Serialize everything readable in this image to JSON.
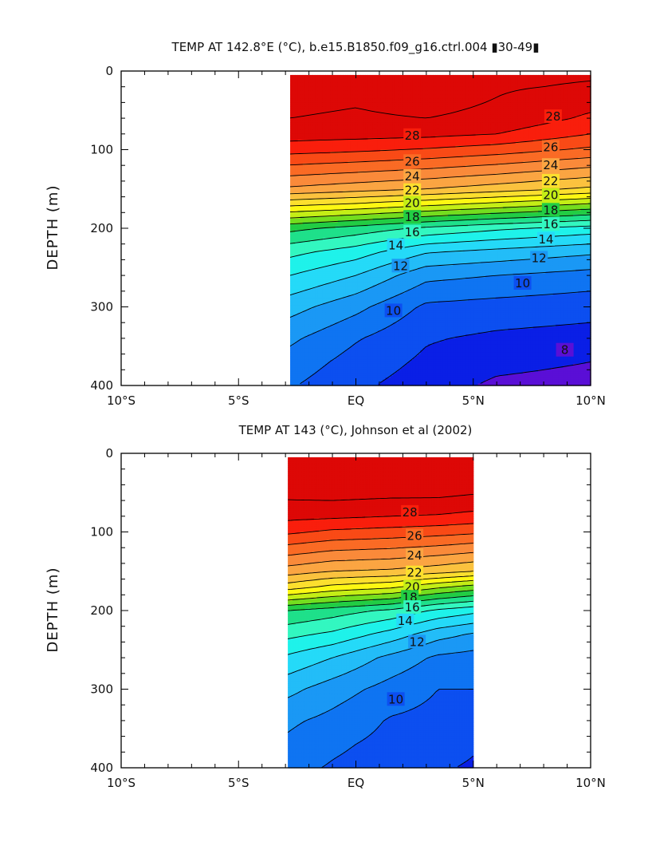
{
  "chart_data": [
    {
      "type": "heatmap",
      "subtype": "filled-contour",
      "title": "TEMP AT 142.8°E (°C), b.e15.B1850.f09_g16.ctrl.004 ▮30-49▮",
      "ylabel": "DEPTH (m)",
      "xlabel": "",
      "x_ticks": [
        -10,
        -5,
        0,
        5,
        10
      ],
      "x_tick_labels": [
        "10°S",
        "5°S",
        "EQ",
        "5°N",
        "10°N"
      ],
      "y_ticks": [
        0,
        100,
        200,
        300,
        400
      ],
      "y_tick_labels": [
        "0",
        "100",
        "200",
        "300",
        "400"
      ],
      "xlim": [
        -10,
        10
      ],
      "ylim": [
        0,
        400
      ],
      "y_inverted": true,
      "data_extent": {
        "x": [
          -2.8,
          10
        ],
        "depth": [
          5,
          400
        ]
      },
      "contour_interval": 1,
      "contour_labels": [
        {
          "text": "28",
          "lat": 2.4,
          "depth": 82
        },
        {
          "text": "28",
          "lat": 8.4,
          "depth": 58
        },
        {
          "text": "26",
          "lat": 2.4,
          "depth": 115
        },
        {
          "text": "26",
          "lat": 8.3,
          "depth": 97
        },
        {
          "text": "24",
          "lat": 2.4,
          "depth": 134
        },
        {
          "text": "24",
          "lat": 8.3,
          "depth": 120
        },
        {
          "text": "22",
          "lat": 2.4,
          "depth": 152
        },
        {
          "text": "22",
          "lat": 8.3,
          "depth": 140
        },
        {
          "text": "20",
          "lat": 2.4,
          "depth": 168
        },
        {
          "text": "20",
          "lat": 8.3,
          "depth": 158
        },
        {
          "text": "18",
          "lat": 2.4,
          "depth": 186
        },
        {
          "text": "18",
          "lat": 8.3,
          "depth": 177
        },
        {
          "text": "16",
          "lat": 2.4,
          "depth": 205
        },
        {
          "text": "16",
          "lat": 8.3,
          "depth": 195
        },
        {
          "text": "14",
          "lat": 1.7,
          "depth": 222
        },
        {
          "text": "14",
          "lat": 8.1,
          "depth": 214
        },
        {
          "text": "12",
          "lat": 1.9,
          "depth": 248
        },
        {
          "text": "12",
          "lat": 7.8,
          "depth": 238
        },
        {
          "text": "10",
          "lat": 1.6,
          "depth": 305
        },
        {
          "text": "10",
          "lat": 7.1,
          "depth": 270
        },
        {
          "text": "8",
          "lat": 8.9,
          "depth": 355
        }
      ],
      "profiles": [
        {
          "x": -2.8,
          "t": [
            [
              5,
              29.4
            ],
            [
              20,
              29.3
            ],
            [
              60,
              29.0
            ],
            [
              80,
              28.5
            ],
            [
              100,
              27.4
            ],
            [
              150,
              23.8
            ],
            [
              170,
              21.2
            ],
            [
              200,
              17.3
            ],
            [
              230,
              15.3
            ],
            [
              260,
              14.0
            ],
            [
              300,
              12.4
            ],
            [
              340,
              11.2
            ],
            [
              370,
              10.6
            ],
            [
              400,
              10.1
            ]
          ]
        },
        {
          "x": 0.0,
          "t": [
            [
              5,
              29.3
            ],
            [
              20,
              29.2
            ],
            [
              60,
              28.9
            ],
            [
              80,
              28.4
            ],
            [
              100,
              27.2
            ],
            [
              150,
              23.4
            ],
            [
              170,
              20.8
            ],
            [
              200,
              16.6
            ],
            [
              230,
              14.5
            ],
            [
              260,
              13.0
            ],
            [
              300,
              11.3
            ],
            [
              340,
              10.1
            ],
            [
              370,
              9.6
            ],
            [
              400,
              9.2
            ]
          ]
        },
        {
          "x": 3.0,
          "t": [
            [
              5,
              29.6
            ],
            [
              20,
              29.5
            ],
            [
              60,
              29.0
            ],
            [
              80,
              28.3
            ],
            [
              100,
              26.9
            ],
            [
              150,
              23.0
            ],
            [
              170,
              20.2
            ],
            [
              200,
              15.8
            ],
            [
              230,
              13.1
            ],
            [
              260,
              11.3
            ],
            [
              300,
              9.8
            ],
            [
              340,
              9.1
            ],
            [
              370,
              8.8
            ],
            [
              400,
              8.5
            ]
          ]
        },
        {
          "x": 6.0,
          "t": [
            [
              5,
              29.2
            ],
            [
              20,
              29.1
            ],
            [
              60,
              28.8
            ],
            [
              80,
              28.0
            ],
            [
              100,
              26.5
            ],
            [
              150,
              22.5
            ],
            [
              170,
              19.6
            ],
            [
              200,
              15.2
            ],
            [
              230,
              12.7
            ],
            [
              260,
              11.0
            ],
            [
              300,
              9.6
            ],
            [
              340,
              8.8
            ],
            [
              370,
              8.3
            ],
            [
              400,
              7.8
            ]
          ]
        },
        {
          "x": 10.0,
          "t": [
            [
              5,
              29.1
            ],
            [
              20,
              28.9
            ],
            [
              60,
              27.8
            ],
            [
              80,
              27.0
            ],
            [
              100,
              25.8
            ],
            [
              150,
              21.8
            ],
            [
              170,
              18.8
            ],
            [
              200,
              14.6
            ],
            [
              230,
              12.2
            ],
            [
              260,
              10.6
            ],
            [
              300,
              9.4
            ],
            [
              340,
              8.6
            ],
            [
              370,
              8.0
            ],
            [
              400,
              7.6
            ]
          ]
        }
      ]
    },
    {
      "type": "heatmap",
      "subtype": "filled-contour",
      "title": "TEMP AT 143 (°C), Johnson et al (2002)",
      "ylabel": "DEPTH (m)",
      "xlabel": "",
      "x_ticks": [
        -10,
        -5,
        0,
        5,
        10
      ],
      "x_tick_labels": [
        "10°S",
        "5°S",
        "EQ",
        "5°N",
        "10°N"
      ],
      "y_ticks": [
        0,
        100,
        200,
        300,
        400
      ],
      "y_tick_labels": [
        "0",
        "100",
        "200",
        "300",
        "400"
      ],
      "xlim": [
        -10,
        10
      ],
      "ylim": [
        0,
        400
      ],
      "y_inverted": true,
      "data_extent": {
        "x": [
          -2.9,
          5
        ],
        "depth": [
          5,
          400
        ]
      },
      "contour_interval": 1,
      "contour_labels": [
        {
          "text": "28",
          "lat": 2.3,
          "depth": 75
        },
        {
          "text": "26",
          "lat": 2.5,
          "depth": 105
        },
        {
          "text": "24",
          "lat": 2.5,
          "depth": 130
        },
        {
          "text": "22",
          "lat": 2.5,
          "depth": 152
        },
        {
          "text": "20",
          "lat": 2.4,
          "depth": 170
        },
        {
          "text": "18",
          "lat": 2.3,
          "depth": 183
        },
        {
          "text": "16",
          "lat": 2.4,
          "depth": 196
        },
        {
          "text": "14",
          "lat": 2.1,
          "depth": 213
        },
        {
          "text": "12",
          "lat": 2.6,
          "depth": 240
        },
        {
          "text": "10",
          "lat": 1.7,
          "depth": 313
        }
      ],
      "profiles": [
        {
          "x": -2.9,
          "t": [
            [
              5,
              29.6
            ],
            [
              20,
              29.6
            ],
            [
              50,
              29.3
            ],
            [
              80,
              28.3
            ],
            [
              100,
              27.2
            ],
            [
              150,
              23.5
            ],
            [
              170,
              21.5
            ],
            [
              200,
              17.0
            ],
            [
              230,
              15.3
            ],
            [
              260,
              13.8
            ],
            [
              300,
              12.3
            ],
            [
              340,
              11.2
            ],
            [
              370,
              10.8
            ],
            [
              400,
              10.3
            ]
          ]
        },
        {
          "x": -1.0,
          "t": [
            [
              5,
              29.8
            ],
            [
              20,
              29.8
            ],
            [
              50,
              29.4
            ],
            [
              80,
              28.2
            ],
            [
              100,
              26.8
            ],
            [
              150,
              23.0
            ],
            [
              170,
              20.7
            ],
            [
              200,
              16.5
            ],
            [
              230,
              14.8
            ],
            [
              260,
              13.0
            ],
            [
              300,
              11.5
            ],
            [
              340,
              10.7
            ],
            [
              370,
              10.2
            ],
            [
              400,
              9.9
            ]
          ]
        },
        {
          "x": 1.5,
          "t": [
            [
              5,
              29.8
            ],
            [
              20,
              29.8
            ],
            [
              50,
              29.3
            ],
            [
              80,
              28.0
            ],
            [
              100,
              26.6
            ],
            [
              150,
              22.8
            ],
            [
              170,
              20.2
            ],
            [
              200,
              15.8
            ],
            [
              230,
              13.6
            ],
            [
              260,
              11.7
            ],
            [
              300,
              10.6
            ],
            [
              340,
              9.9
            ],
            [
              370,
              9.7
            ],
            [
              400,
              9.5
            ]
          ]
        },
        {
          "x": 3.5,
          "t": [
            [
              5,
              29.8
            ],
            [
              20,
              29.8
            ],
            [
              50,
              29.3
            ],
            [
              80,
              27.9
            ],
            [
              100,
              26.4
            ],
            [
              150,
              22.4
            ],
            [
              170,
              19.2
            ],
            [
              200,
              14.8
            ],
            [
              230,
              12.4
            ],
            [
              260,
              10.8
            ],
            [
              300,
              10.0
            ],
            [
              340,
              9.7
            ],
            [
              370,
              9.4
            ],
            [
              400,
              9.1
            ]
          ]
        },
        {
          "x": 5.0,
          "t": [
            [
              5,
              29.7
            ],
            [
              20,
              29.7
            ],
            [
              50,
              29.1
            ],
            [
              80,
              27.7
            ],
            [
              100,
              26.2
            ],
            [
              150,
              22.0
            ],
            [
              170,
              18.6
            ],
            [
              200,
              14.3
            ],
            [
              230,
              11.9
            ],
            [
              260,
              10.6
            ],
            [
              300,
              10.0
            ],
            [
              340,
              9.5
            ],
            [
              370,
              9.1
            ],
            [
              400,
              8.9
            ]
          ]
        }
      ]
    }
  ]
}
